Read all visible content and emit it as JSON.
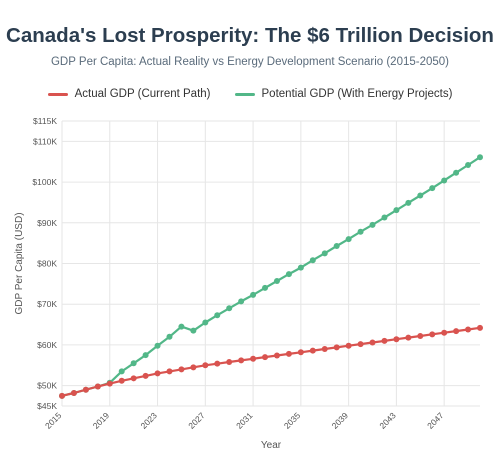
{
  "header": {
    "title": "Canada's Lost Prosperity: The $6 Trillion Decision",
    "subtitle": "GDP Per Capita: Actual Reality vs Energy Development Scenario (2015-2050)"
  },
  "legend": [
    {
      "label": "Actual GDP (Current Path)",
      "color": "#d9534f"
    },
    {
      "label": "Potential GDP (With Energy Projects)",
      "color": "#52b788"
    }
  ],
  "chart_data": {
    "type": "line",
    "title": "Canada's Lost Prosperity: The $6 Trillion Decision",
    "subtitle": "GDP Per Capita: Actual Reality vs Energy Development Scenario (2015-2050)",
    "xlabel": "Year",
    "ylabel": "GDP Per Capita (USD)",
    "ylim": [
      45000,
      115000
    ],
    "xlim": [
      2015,
      2050
    ],
    "x_tick_labels": [
      "2015",
      "2019",
      "2023",
      "2027",
      "2031",
      "2035",
      "2039",
      "2043",
      "2047"
    ],
    "y_tick_labels": [
      "$45K",
      "$50K",
      "$60K",
      "$70K",
      "$80K",
      "$90K",
      "$100K",
      "$110K",
      "$115K"
    ],
    "y_tick_values": [
      45000,
      50000,
      60000,
      70000,
      80000,
      90000,
      100000,
      110000,
      115000
    ],
    "grid": true,
    "legend_position": "top",
    "x": [
      2015,
      2016,
      2017,
      2018,
      2019,
      2020,
      2021,
      2022,
      2023,
      2024,
      2025,
      2026,
      2027,
      2028,
      2029,
      2030,
      2031,
      2032,
      2033,
      2034,
      2035,
      2036,
      2037,
      2038,
      2039,
      2040,
      2041,
      2042,
      2043,
      2044,
      2045,
      2046,
      2047,
      2048,
      2049,
      2050
    ],
    "series": [
      {
        "name": "Actual GDP (Current Path)",
        "color": "#d9534f",
        "values": [
          47500,
          48200,
          49000,
          49800,
          50500,
          51200,
          51800,
          52400,
          53000,
          53500,
          54000,
          54500,
          55000,
          55400,
          55800,
          56200,
          56600,
          57000,
          57400,
          57800,
          58200,
          58600,
          59000,
          59400,
          59800,
          60200,
          60600,
          61000,
          61400,
          61800,
          62200,
          62600,
          63000,
          63400,
          63800,
          64200
        ]
      },
      {
        "name": "Potential GDP (With Energy Projects)",
        "color": "#52b788",
        "values": [
          47500,
          48200,
          49000,
          49800,
          50700,
          53500,
          55500,
          57500,
          59800,
          62000,
          64500,
          63500,
          65500,
          67300,
          69000,
          70700,
          72300,
          74000,
          75700,
          77400,
          79000,
          80800,
          82500,
          84300,
          86000,
          87800,
          89500,
          91300,
          93100,
          94900,
          96700,
          98500,
          100400,
          102300,
          104200,
          106100
        ]
      }
    ]
  }
}
